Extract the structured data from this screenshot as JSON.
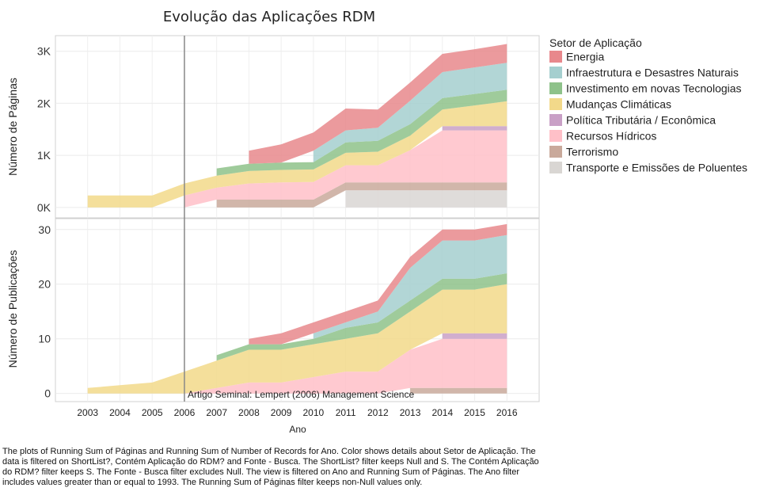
{
  "chart_data": {
    "type": "area",
    "title": "Evolução das Aplicações RDM",
    "xlabel": "Ano",
    "x": [
      2003,
      2004,
      2005,
      2006,
      2007,
      2008,
      2009,
      2010,
      2011,
      2012,
      2013,
      2014,
      2015,
      2016
    ],
    "x_tick_labels": [
      "2003",
      "2004",
      "2005",
      "2006",
      "2007",
      "2008",
      "2009",
      "2010",
      "2011",
      "2012",
      "2013",
      "2014",
      "2015",
      "2016"
    ],
    "legend_title": "Setor de Aplicação",
    "legend_position": "right",
    "categories": [
      {
        "name": "Energia",
        "color": "#e8888c"
      },
      {
        "name": "Infraestrutura e Desastres Naturais",
        "color": "#a5cfcf"
      },
      {
        "name": "Investimento em novas Tecnologias",
        "color": "#8ec28a"
      },
      {
        "name": "Mudanças Climáticas",
        "color": "#f2d98a"
      },
      {
        "name": "Política Tributária / Econômica",
        "color": "#c9a0c6"
      },
      {
        "name": "Recursos Hídricos",
        "color": "#ffc0c8"
      },
      {
        "name": "Terrorismo",
        "color": "#c9a99b"
      },
      {
        "name": "Transporte e Emissões de Poluentes",
        "color": "#d9d6d3"
      }
    ],
    "reference_line": {
      "x": 2006
    },
    "annotation": "Artigo Seminal: Lempert (2006) Management Science",
    "panels": [
      {
        "ylabel": "Número de Páginas",
        "ylim": [
          -200,
          3300
        ],
        "y_ticks": [
          0,
          1000,
          2000,
          3000
        ],
        "y_tick_labels": [
          "0K",
          "1K",
          "2K",
          "3K"
        ],
        "grid": true,
        "stacks": [
          {
            "name": "Transporte e Emissões de Poluentes",
            "values": [
              null,
              null,
              null,
              null,
              null,
              null,
              null,
              null,
              330,
              330,
              330,
              330,
              330,
              330
            ]
          },
          {
            "name": "Terrorismo",
            "values": [
              null,
              null,
              null,
              null,
              150,
              150,
              150,
              150,
              150,
              150,
              150,
              150,
              150,
              150
            ]
          },
          {
            "name": "Recursos Hídricos",
            "values": [
              null,
              null,
              null,
              230,
              230,
              310,
              330,
              340,
              330,
              330,
              620,
              1000,
              1000,
              1000
            ]
          },
          {
            "name": "Política Tributária / Econômica",
            "values": [
              null,
              null,
              null,
              null,
              null,
              null,
              null,
              null,
              null,
              null,
              null,
              80,
              80,
              80
            ]
          },
          {
            "name": "Mudanças Climáticas",
            "values": [
              230,
              230,
              230,
              230,
              230,
              240,
              240,
              240,
              240,
              260,
              280,
              320,
              400,
              480
            ]
          },
          {
            "name": "Investimento em novas Tecnologias",
            "values": [
              null,
              null,
              null,
              null,
              140,
              140,
              140,
              140,
              200,
              210,
              220,
              220,
              220,
              220
            ]
          },
          {
            "name": "Infraestrutura e Desastres Naturais",
            "values": [
              null,
              null,
              null,
              null,
              null,
              null,
              null,
              220,
              230,
              250,
              450,
              500,
              510,
              520
            ]
          },
          {
            "name": "Energia",
            "values": [
              null,
              null,
              null,
              null,
              null,
              250,
              350,
              350,
              420,
              350,
              350,
              350,
              350,
              360
            ]
          }
        ]
      },
      {
        "ylabel": "Número de Publicações",
        "ylim": [
          -1.5,
          32
        ],
        "y_ticks": [
          0,
          10,
          20,
          30
        ],
        "y_tick_labels": [
          "0",
          "10",
          "20",
          "30"
        ],
        "grid": true,
        "stacks": [
          {
            "name": "Transporte e Emissões de Poluentes",
            "values": [
              null,
              null,
              null,
              null,
              null,
              null,
              null,
              null,
              0,
              0,
              0,
              0,
              0,
              0
            ]
          },
          {
            "name": "Terrorismo",
            "values": [
              null,
              null,
              null,
              null,
              null,
              null,
              null,
              null,
              null,
              null,
              1,
              1,
              1,
              1
            ]
          },
          {
            "name": "Recursos Hídricos",
            "values": [
              null,
              null,
              null,
              0,
              1,
              2,
              2,
              3,
              4,
              4,
              7,
              9,
              9,
              9
            ]
          },
          {
            "name": "Política Tributária / Econômica",
            "values": [
              null,
              null,
              null,
              null,
              null,
              null,
              null,
              null,
              null,
              null,
              null,
              1,
              1,
              1
            ]
          },
          {
            "name": "Mudanças Climáticas",
            "values": [
              1,
              1.5,
              2,
              4,
              5,
              6,
              6,
              6,
              6,
              7,
              7,
              8,
              8,
              9
            ]
          },
          {
            "name": "Investimento em novas Tecnologias",
            "values": [
              null,
              null,
              null,
              null,
              1,
              1,
              1,
              1,
              2,
              2,
              2,
              2,
              2,
              2
            ]
          },
          {
            "name": "Infraestrutura e Desastres Naturais",
            "values": [
              null,
              null,
              null,
              null,
              null,
              null,
              null,
              1,
              1,
              2,
              6,
              7,
              7,
              7
            ]
          },
          {
            "name": "Energia",
            "values": [
              null,
              null,
              null,
              null,
              null,
              1,
              2,
              2,
              2,
              2,
              2,
              2,
              2,
              2
            ]
          }
        ]
      }
    ]
  },
  "caption": "The plots of Running Sum of Páginas and Running Sum of Number of Records for Ano.  Color shows details about Setor de Aplicação. The data is filtered on ShortList?, Contém Aplicação do RDM? and Fonte - Busca. The ShortList? filter keeps Null and S. The Contém Aplicação do RDM? filter keeps S. The Fonte - Busca filter excludes Null. The view is filtered on Ano and Running Sum of Páginas. The Ano filter includes values greater than or equal to 1993. The Running Sum of Páginas filter keeps non-Null values only."
}
